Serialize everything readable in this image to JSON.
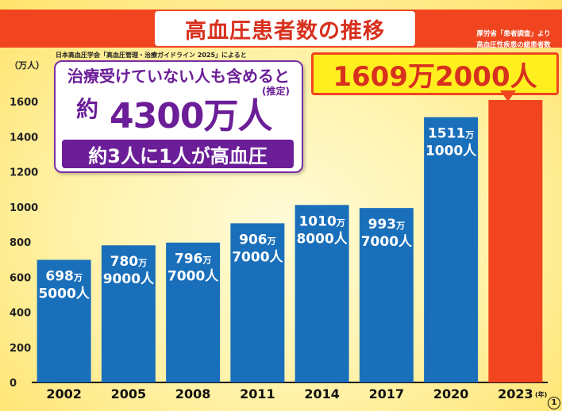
{
  "header": {
    "title": "高血圧患者数の推移",
    "source_right_line1": "厚労省「患者調査」より",
    "source_right_line2": "高血圧性疾患の総患者数"
  },
  "unit_label": "（万人）",
  "note": "日本高血圧学会「高血圧管理・治療ガイドライン 2025」によると",
  "callout": {
    "line1": "治療受けていない人も含めると",
    "estimate": "(推定)",
    "approx": "約",
    "big": "4300万人",
    "line3": "約3人に1人が高血圧"
  },
  "highlight": "1609万2000人",
  "year_suffix": "(年)",
  "page_number": "1",
  "colors": {
    "bar": "#1a6fba",
    "highlight_bar": "#f0451f",
    "banner": "#f0451f",
    "callout": "#6b1e98"
  },
  "chart_data": {
    "type": "bar",
    "categories": [
      "2002",
      "2005",
      "2008",
      "2011",
      "2014",
      "2017",
      "2020",
      "2023"
    ],
    "values": [
      698.5,
      780.9,
      796.7,
      906.7,
      1010.8,
      993.7,
      1511.1,
      1609.2
    ],
    "value_labels": [
      [
        "698万",
        "5000人"
      ],
      [
        "780万",
        "9000人"
      ],
      [
        "796万",
        "7000人"
      ],
      [
        "906万",
        "7000人"
      ],
      [
        "1010万",
        "8000人"
      ],
      [
        "993万",
        "7000人"
      ],
      [
        "1511万",
        "1000人"
      ],
      [
        "",
        ""
      ]
    ],
    "highlight_index": 7,
    "yticks": [
      0,
      200,
      400,
      600,
      800,
      1000,
      1200,
      1400,
      1600
    ],
    "ylim": [
      0,
      1600
    ],
    "grid": false
  }
}
